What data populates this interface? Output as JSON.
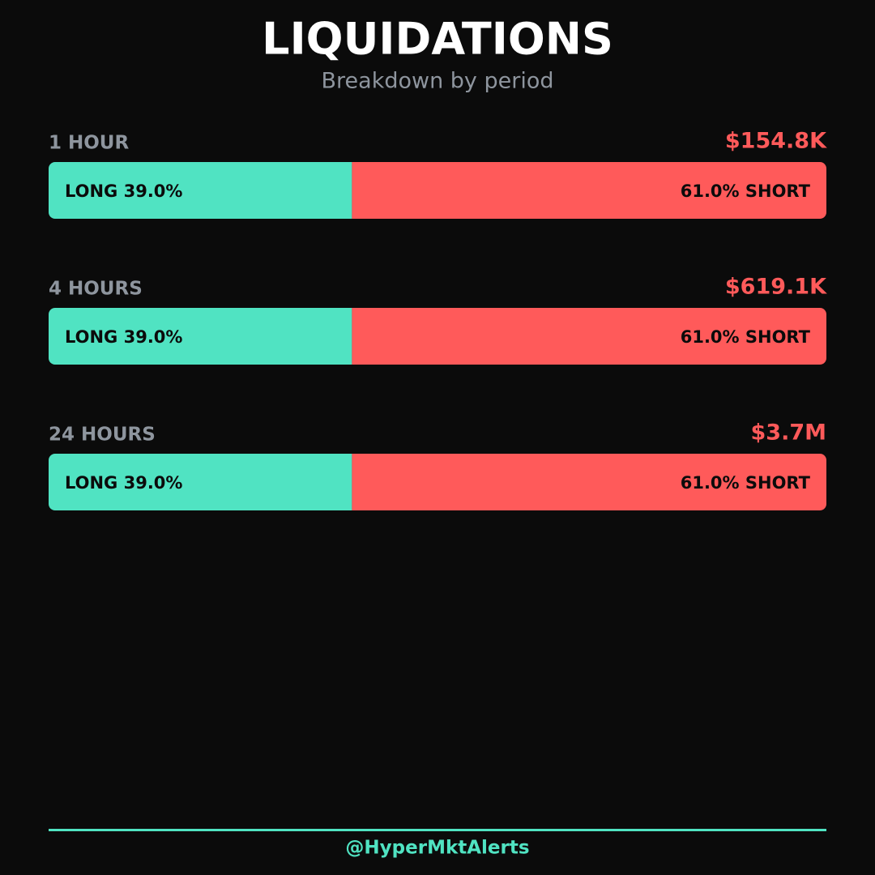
{
  "chart_data": {
    "type": "bar",
    "orientation": "horizontal",
    "stacked": true,
    "title": "LIQUIDATIONS",
    "subtitle": "Breakdown by period",
    "categories": [
      "1 HOUR",
      "4 HOURS",
      "24 HOURS"
    ],
    "totals": {
      "values": [
        154800,
        619100,
        3700000
      ],
      "value_labels": [
        "$154.8K",
        "$619.1K",
        "$3.7M"
      ],
      "color": "#ff5a5a"
    },
    "series": [
      {
        "name": "LONG",
        "color": "#50e3c2",
        "values": [
          39.0,
          39.0,
          39.0
        ],
        "value_labels": [
          "LONG 39.0%",
          "LONG 39.0%",
          "LONG 39.0%"
        ]
      },
      {
        "name": "SHORT",
        "color": "#ff5a5a",
        "values": [
          61.0,
          61.0,
          61.0
        ],
        "value_labels": [
          "61.0% SHORT",
          "61.0% SHORT",
          "61.0% SHORT"
        ]
      }
    ],
    "xlim": [
      0,
      100
    ],
    "footer": "@HyperMktAlerts"
  }
}
